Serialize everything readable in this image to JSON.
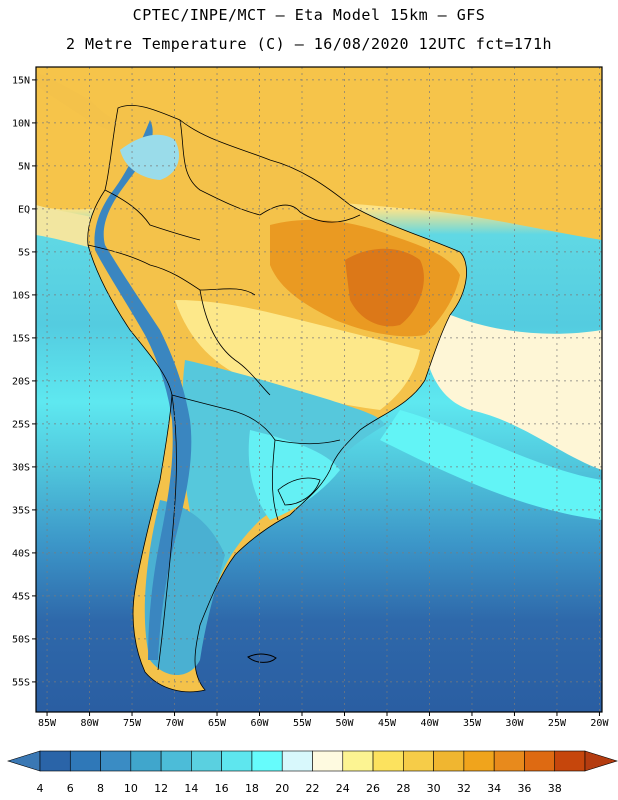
{
  "titles": {
    "line1": "CPTEC/INPE/MCT –  Eta Model 15km – GFS",
    "line2": "2 Metre Temperature (C) – 16/08/2020 12UTC fct=171h"
  },
  "axes": {
    "lat_labels": [
      "15N",
      "10N",
      "5N",
      "EQ",
      "5S",
      "10S",
      "15S",
      "20S",
      "25S",
      "30S",
      "35S",
      "40S",
      "45S",
      "50S",
      "55S"
    ],
    "lat_values": [
      15,
      10,
      5,
      0,
      -5,
      -10,
      -15,
      -20,
      -25,
      -30,
      -35,
      -40,
      -45,
      -50,
      -55
    ],
    "lon_labels": [
      "85W",
      "80W",
      "75W",
      "70W",
      "65W",
      "60W",
      "55W",
      "50W",
      "45W",
      "40W",
      "35W",
      "30W",
      "25W",
      "20W"
    ],
    "lon_values": [
      -85,
      -80,
      -75,
      -70,
      -65,
      -60,
      -55,
      -50,
      -45,
      -40,
      -35,
      -30,
      -25,
      -20
    ]
  },
  "colorbar": {
    "labels": [
      "4",
      "6",
      "8",
      "10",
      "12",
      "14",
      "16",
      "18",
      "20",
      "22",
      "24",
      "26",
      "28",
      "30",
      "32",
      "34",
      "36",
      "38"
    ],
    "colors": [
      "#2a64a8",
      "#2f78b8",
      "#3a8cc4",
      "#40a6cc",
      "#4cbcd8",
      "#5ad0e0",
      "#5ee6ee",
      "#66fcfc",
      "#d8f8fc",
      "#fefae0",
      "#fcf492",
      "#fce25e",
      "#f6cc48",
      "#f0b630",
      "#f0a41c",
      "#e88a1c",
      "#de6a12",
      "#c6460c"
    ],
    "under_color": "#3a78b4",
    "over_color": "#b43c10"
  },
  "palette": {
    "ocean_s": "#2f62a4",
    "ocean_m": "#3a8ec4",
    "ocean_cyan": "#5cd8e6",
    "ocean_bright": "#66fafa",
    "warm_n": "#f6c64a",
    "warm_n2": "#f0b63a",
    "land_hot": "#e8961c",
    "land_warm": "#f4c04a",
    "land_mild": "#fce26a",
    "andes_cold": "#3a80bc",
    "patagonia": "#4aa8cc",
    "border": "#000000"
  }
}
